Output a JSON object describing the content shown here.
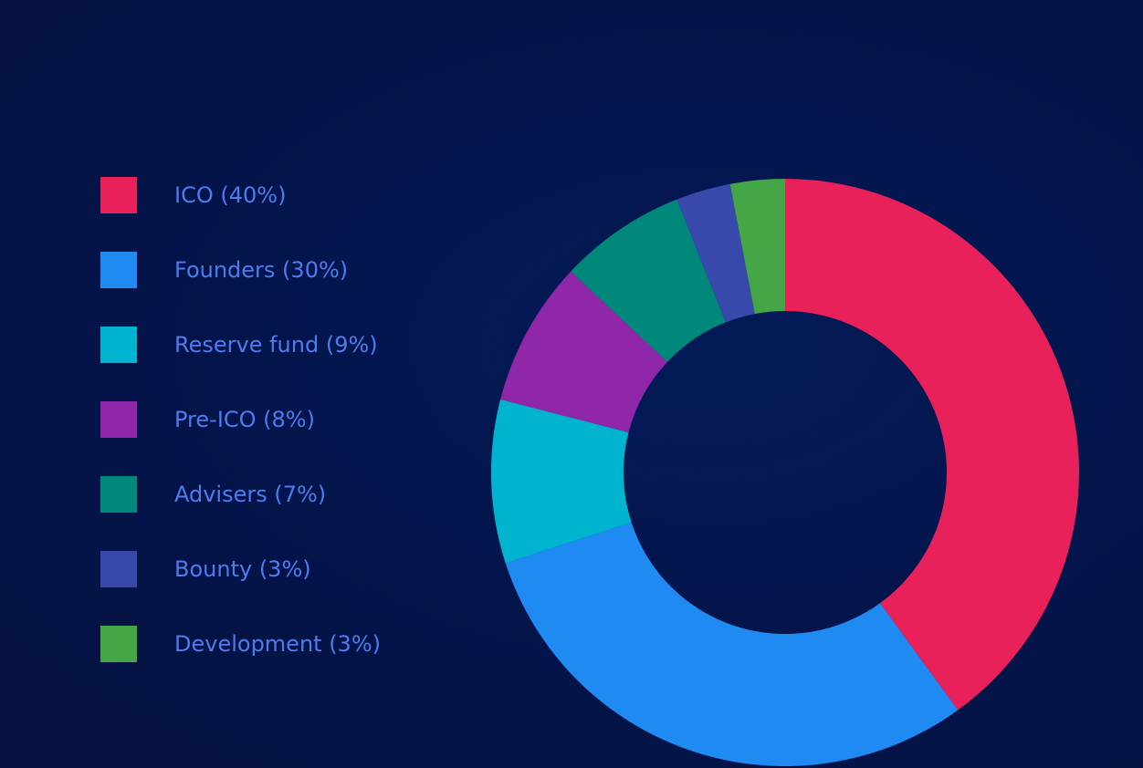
{
  "chart_data": {
    "type": "pie",
    "donut": true,
    "legend_position": "left",
    "categories": [
      "ICO",
      "Founders",
      "Reserve fund",
      "Pre-ICO",
      "Advisers",
      "Bounty",
      "Development"
    ],
    "values": [
      40,
      30,
      9,
      8,
      7,
      3,
      3
    ],
    "legend_labels": [
      "ICO (40%)",
      "Founders (30%)",
      "Reserve fund (9%)",
      "Pre-ICO (8%)",
      "Advisers (7%)",
      "Bounty (3%)",
      "Development (3%)"
    ],
    "colors": [
      "#e8215a",
      "#1f8af2",
      "#00b4d0",
      "#9027a8",
      "#00897b",
      "#3949ab",
      "#44a646"
    ]
  }
}
